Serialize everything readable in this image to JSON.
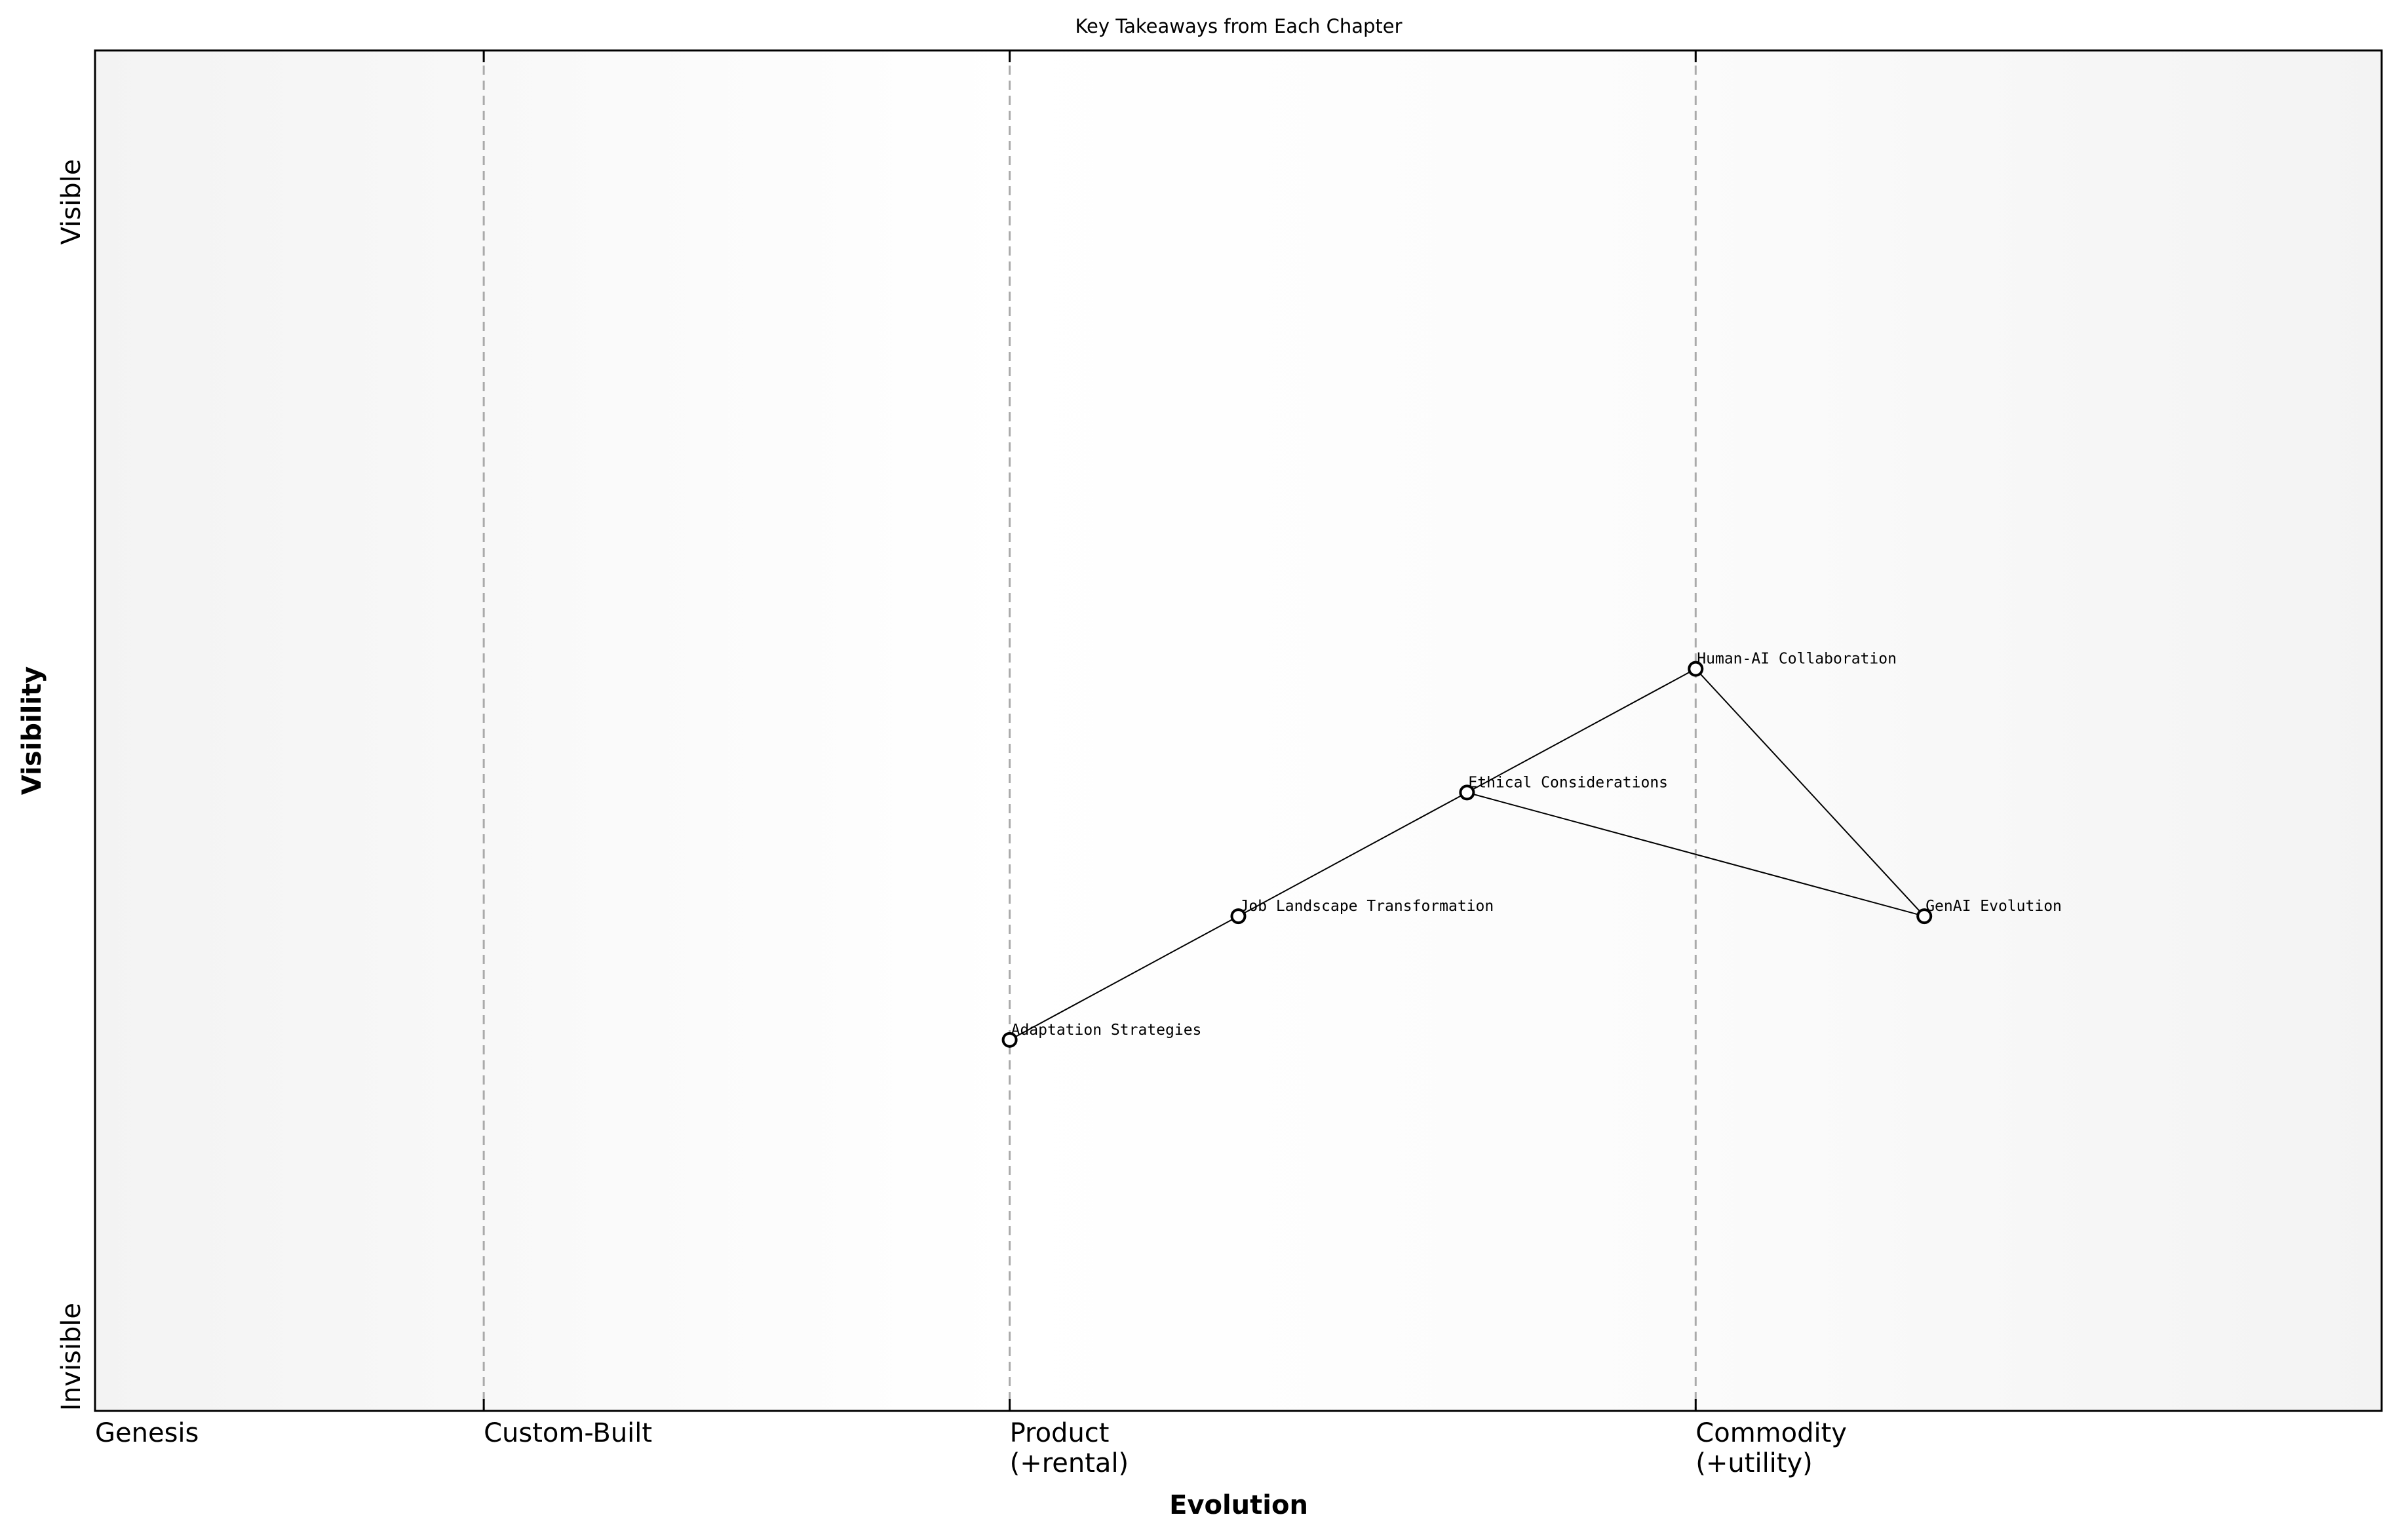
{
  "title": "Key Takeaways from Each Chapter",
  "x_axis": {
    "label": "Evolution",
    "stages": [
      {
        "name": "Genesis",
        "lines": [
          "Genesis"
        ],
        "x": 0.0
      },
      {
        "name": "Custom-Built",
        "lines": [
          "Custom-Built"
        ],
        "x": 0.17
      },
      {
        "name": "Product",
        "lines": [
          "Product",
          "(+rental)"
        ],
        "x": 0.4
      },
      {
        "name": "Commodity",
        "lines": [
          "Commodity",
          "(+utility)"
        ],
        "x": 0.7
      }
    ],
    "range": [
      0,
      1
    ]
  },
  "y_axis": {
    "label": "Visibility",
    "top_label": "Visible",
    "bottom_label": "Invisible",
    "range": [
      0,
      1.1
    ]
  },
  "components": [
    {
      "name": "Adaptation Strategies",
      "evolution": 0.4,
      "visibility": 0.3
    },
    {
      "name": "Job Landscape Transformation",
      "evolution": 0.5,
      "visibility": 0.4
    },
    {
      "name": "Ethical Considerations",
      "evolution": 0.6,
      "visibility": 0.5
    },
    {
      "name": "Human-AI Collaboration",
      "evolution": 0.7,
      "visibility": 0.6
    },
    {
      "name": "GenAI Evolution",
      "evolution": 0.8,
      "visibility": 0.4
    }
  ],
  "links": [
    [
      "Adaptation Strategies",
      "Job Landscape Transformation"
    ],
    [
      "Job Landscape Transformation",
      "Ethical Considerations"
    ],
    [
      "Ethical Considerations",
      "Human-AI Collaboration"
    ],
    [
      "Human-AI Collaboration",
      "GenAI Evolution"
    ],
    [
      "Ethical Considerations",
      "GenAI Evolution"
    ]
  ],
  "colors": {
    "stage_divider": "#aaaaaa",
    "edge_shade": "#f3f3f3",
    "center_shade": "#ffffff",
    "node_fill": "#ffffff",
    "node_stroke": "#000000"
  }
}
